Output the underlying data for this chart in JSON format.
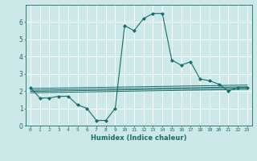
{
  "xlabel": "Humidex (Indice chaleur)",
  "bg_color": "#cce8e8",
  "grid_color": "#ffffff",
  "line_color": "#1a6b6b",
  "xlim": [
    -0.5,
    23.5
  ],
  "ylim": [
    0,
    7
  ],
  "xticks": [
    0,
    1,
    2,
    3,
    4,
    5,
    6,
    7,
    8,
    9,
    10,
    11,
    12,
    13,
    14,
    15,
    16,
    17,
    18,
    19,
    20,
    21,
    22,
    23
  ],
  "yticks": [
    0,
    1,
    2,
    3,
    4,
    5,
    6
  ],
  "main_x": [
    0,
    1,
    2,
    3,
    4,
    5,
    6,
    7,
    8,
    9,
    10,
    11,
    12,
    13,
    14,
    15,
    16,
    17,
    18,
    19,
    20,
    21,
    22,
    23
  ],
  "main_y": [
    2.2,
    1.6,
    1.6,
    1.7,
    1.7,
    1.2,
    1.0,
    0.3,
    0.3,
    1.0,
    5.8,
    5.5,
    6.2,
    6.5,
    6.5,
    3.8,
    3.5,
    3.7,
    2.7,
    2.6,
    2.4,
    2.0,
    2.2,
    2.2
  ],
  "flat_lines": [
    {
      "x": [
        0,
        23
      ],
      "y": [
        2.15,
        2.35
      ]
    },
    {
      "x": [
        0,
        23
      ],
      "y": [
        2.05,
        2.25
      ]
    },
    {
      "x": [
        0,
        23
      ],
      "y": [
        1.98,
        2.18
      ]
    },
    {
      "x": [
        0,
        23
      ],
      "y": [
        1.9,
        2.1
      ]
    }
  ]
}
